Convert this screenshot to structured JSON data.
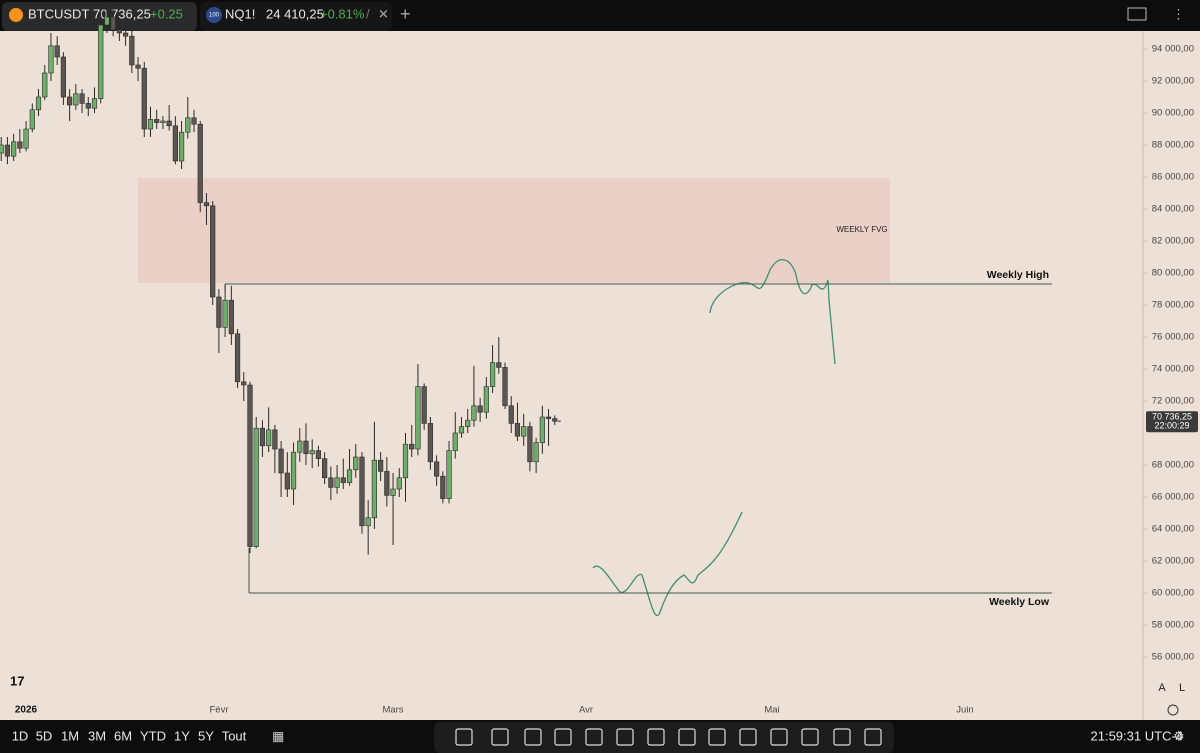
{
  "tabs": [
    {
      "symbol": "BTCUSDT",
      "price": "70 736,25",
      "change": "+0.25"
    },
    {
      "badge": "100",
      "symbol": "NQ1!",
      "price": "24 410,25",
      "change": "+0.81%",
      "sep": "/"
    }
  ],
  "chart": {
    "ylim": [
      53500,
      95125
    ],
    "yticks": [
      {
        "value": 94000,
        "label": "94 000,00"
      },
      {
        "value": 92000,
        "label": "92 000,00"
      },
      {
        "value": 90000,
        "label": "90 000,00"
      },
      {
        "value": 88000,
        "label": "88 000,00"
      },
      {
        "value": 86000,
        "label": "86 000,00"
      },
      {
        "value": 84000,
        "label": "84 000,00"
      },
      {
        "value": 82000,
        "label": "82 000,00"
      },
      {
        "value": 80000,
        "label": "80 000,00"
      },
      {
        "value": 78000,
        "label": "78 000,00"
      },
      {
        "value": 76000,
        "label": "76 000,00"
      },
      {
        "value": 74000,
        "label": "74 000,00"
      },
      {
        "value": 72000,
        "label": "72 000,00"
      },
      {
        "value": 68000,
        "label": "68 000,00"
      },
      {
        "value": 66000,
        "label": "66 000,00"
      },
      {
        "value": 64000,
        "label": "64 000,00"
      },
      {
        "value": 62000,
        "label": "62 000,00"
      },
      {
        "value": 60000,
        "label": "60 000,00"
      },
      {
        "value": 58000,
        "label": "58 000,00"
      },
      {
        "value": 56000,
        "label": "56 000,00"
      }
    ],
    "x_labels": [
      "2026",
      "Févr",
      "Mars",
      "Avr",
      "Mai",
      "Juin"
    ],
    "candles": [
      [
        87500,
        88500,
        87000,
        88000
      ],
      [
        88000,
        88500,
        86800,
        87300
      ],
      [
        87300,
        88700,
        87000,
        88200
      ],
      [
        88200,
        89000,
        87500,
        87800
      ],
      [
        87800,
        89500,
        87600,
        89000
      ],
      [
        89000,
        90600,
        88800,
        90200
      ],
      [
        90200,
        91500,
        89800,
        91000
      ],
      [
        91000,
        93000,
        90800,
        92500
      ],
      [
        92500,
        95000,
        92000,
        94200
      ],
      [
        94200,
        94800,
        93000,
        93500
      ],
      [
        93500,
        93800,
        90500,
        91000
      ],
      [
        91000,
        91500,
        89500,
        90500
      ],
      [
        90500,
        91800,
        90200,
        91200
      ],
      [
        91200,
        91500,
        90000,
        90600
      ],
      [
        90600,
        91000,
        89800,
        90300
      ],
      [
        90300,
        91600,
        90000,
        90900
      ],
      [
        90900,
        96500,
        90600,
        95500
      ],
      [
        95500,
        97000,
        95000,
        96000
      ],
      [
        96000,
        96500,
        94800,
        95200
      ],
      [
        95200,
        95500,
        94500,
        95000
      ],
      [
        95000,
        95400,
        94200,
        94800
      ],
      [
        94800,
        95200,
        92500,
        93000
      ],
      [
        93000,
        93500,
        92000,
        92800
      ],
      [
        92800,
        93200,
        88500,
        89000
      ],
      [
        89000,
        90400,
        88500,
        89600
      ],
      [
        89600,
        90200,
        89000,
        89400
      ],
      [
        89400,
        89800,
        89000,
        89500
      ],
      [
        89500,
        90500,
        88900,
        89200
      ],
      [
        89200,
        89800,
        86800,
        87000
      ],
      [
        87000,
        89500,
        86500,
        88800
      ],
      [
        88800,
        91000,
        88400,
        89700
      ],
      [
        89700,
        90200,
        88800,
        89300
      ],
      [
        89300,
        89500,
        83800,
        84400
      ],
      [
        84400,
        85000,
        83000,
        84200
      ],
      [
        84200,
        84500,
        78000,
        78500
      ],
      [
        78500,
        79000,
        75000,
        76600
      ],
      [
        76600,
        79300,
        76000,
        78300
      ],
      [
        78300,
        79200,
        75500,
        76200
      ],
      [
        76200,
        76500,
        72800,
        73200
      ],
      [
        73200,
        73800,
        72000,
        73000
      ],
      [
        73000,
        73200,
        62500,
        62900
      ],
      [
        62900,
        71000,
        62800,
        70300
      ],
      [
        70300,
        70800,
        68500,
        69200
      ],
      [
        69200,
        71600,
        68800,
        70200
      ],
      [
        70200,
        70500,
        67500,
        69000
      ],
      [
        69000,
        69500,
        66000,
        67500
      ],
      [
        67500,
        68800,
        66000,
        66500
      ],
      [
        66500,
        69400,
        65500,
        68800
      ],
      [
        68800,
        70300,
        68200,
        69500
      ],
      [
        69500,
        70600,
        68000,
        68700
      ],
      [
        68700,
        69600,
        67800,
        68900
      ],
      [
        68900,
        69200,
        67900,
        68400
      ],
      [
        68400,
        68800,
        66800,
        67200
      ],
      [
        67200,
        67900,
        65800,
        66600
      ],
      [
        66600,
        68000,
        66200,
        67200
      ],
      [
        67200,
        68400,
        66500,
        66900
      ],
      [
        66900,
        69000,
        66700,
        67700
      ],
      [
        67700,
        69300,
        67200,
        68500
      ],
      [
        68500,
        68800,
        63700,
        64200
      ],
      [
        64200,
        65800,
        62400,
        64700
      ],
      [
        64700,
        70700,
        64000,
        68300
      ],
      [
        68300,
        68800,
        67000,
        67600
      ],
      [
        67600,
        68500,
        65400,
        66100
      ],
      [
        66100,
        67500,
        63000,
        66500
      ],
      [
        66500,
        67800,
        66000,
        67200
      ],
      [
        67200,
        70000,
        65700,
        69300
      ],
      [
        69300,
        70500,
        68500,
        69000
      ],
      [
        69000,
        74300,
        68600,
        72900
      ],
      [
        72900,
        73100,
        70200,
        70600
      ],
      [
        70600,
        71000,
        67700,
        68200
      ],
      [
        68200,
        68600,
        66700,
        67300
      ],
      [
        67300,
        67600,
        65600,
        65900
      ],
      [
        65900,
        69500,
        65600,
        68900
      ],
      [
        68900,
        71300,
        68400,
        70000
      ],
      [
        70000,
        71000,
        69700,
        70400
      ],
      [
        70400,
        71500,
        70000,
        70800
      ],
      [
        70800,
        74200,
        70400,
        71700
      ],
      [
        71700,
        72200,
        70700,
        71300
      ],
      [
        71300,
        73500,
        70900,
        72900
      ],
      [
        72900,
        75500,
        72500,
        74400
      ],
      [
        74400,
        76000,
        73700,
        74100
      ],
      [
        74100,
        74400,
        71500,
        71700
      ],
      [
        71700,
        72300,
        70000,
        70600
      ],
      [
        70600,
        71900,
        69500,
        69800
      ],
      [
        69800,
        71200,
        69200,
        70400
      ],
      [
        70400,
        70700,
        67600,
        68200
      ],
      [
        68200,
        69700,
        67500,
        69400
      ],
      [
        69400,
        71700,
        68700,
        71000
      ],
      [
        71000,
        71500,
        69200,
        70900
      ],
      [
        70900,
        71100,
        70500,
        70736.25
      ]
    ],
    "levels": [
      {
        "label": "Weekly High",
        "value": 79312
      },
      {
        "label": "Weekly Low",
        "value": 60000
      }
    ],
    "zone": {
      "label": "WEEKLY FVG",
      "top": 85937,
      "bottom": 79375
    },
    "last_price_label": "70 736,25",
    "countdown": "22:00:29"
  },
  "toolbar": {
    "ranges": [
      "1D",
      "5D",
      "1M",
      "3M",
      "6M",
      "YTD",
      "1Y",
      "5Y",
      "Tout"
    ],
    "time": "21:59:31 UTC-4",
    "scale_buttons": [
      "A",
      "L"
    ]
  }
}
